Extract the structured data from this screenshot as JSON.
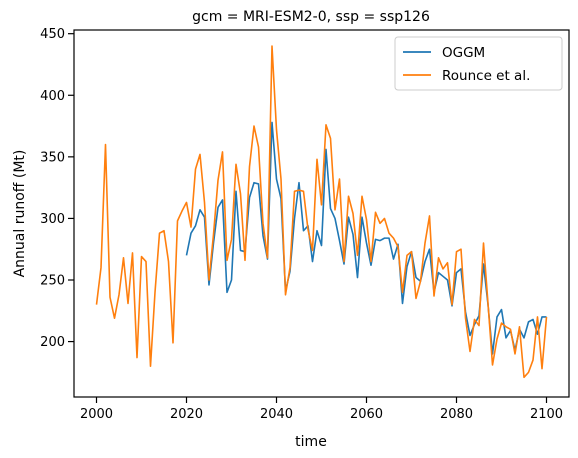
{
  "chart_data": {
    "type": "line",
    "title": "gcm = MRI-ESM2-0, ssp = ssp126",
    "xlabel": "time",
    "ylabel": "Annual runoff (Mt)",
    "xlim": [
      1995,
      2105
    ],
    "ylim": [
      155,
      453
    ],
    "xticks": [
      2000,
      2020,
      2040,
      2060,
      2080,
      2100
    ],
    "yticks": [
      200,
      250,
      300,
      350,
      400,
      450
    ],
    "grid": false,
    "legend_position": "top-right",
    "series": [
      {
        "name": "OGGM",
        "color": "#1f77b4",
        "x": [
          2020,
          2021,
          2022,
          2023,
          2024,
          2025,
          2026,
          2027,
          2028,
          2029,
          2030,
          2031,
          2032,
          2033,
          2034,
          2035,
          2036,
          2037,
          2038,
          2039,
          2040,
          2041,
          2042,
          2043,
          2044,
          2045,
          2046,
          2047,
          2048,
          2049,
          2050,
          2051,
          2052,
          2053,
          2054,
          2055,
          2056,
          2057,
          2058,
          2059,
          2060,
          2061,
          2062,
          2063,
          2064,
          2065,
          2066,
          2067,
          2068,
          2069,
          2070,
          2071,
          2072,
          2073,
          2074,
          2075,
          2076,
          2077,
          2078,
          2079,
          2080,
          2081,
          2082,
          2083,
          2084,
          2085,
          2086,
          2087,
          2088,
          2089,
          2090,
          2091,
          2092,
          2093,
          2094,
          2095,
          2096,
          2097,
          2098,
          2099,
          2100
        ],
        "values": [
          270,
          288,
          294,
          307,
          301,
          246,
          280,
          309,
          315,
          240,
          250,
          322,
          274,
          273,
          317,
          329,
          328,
          286,
          267,
          378,
          332,
          316,
          241,
          257,
          300,
          329,
          290,
          294,
          265,
          290,
          278,
          356,
          308,
          300,
          282,
          263,
          301,
          287,
          252,
          301,
          280,
          262,
          283,
          282,
          284,
          284,
          267,
          279,
          231,
          261,
          273,
          252,
          249,
          265,
          275,
          240,
          256,
          253,
          250,
          229,
          256,
          259,
          224,
          205,
          214,
          221,
          263,
          230,
          190,
          220,
          226,
          203,
          209,
          193,
          210,
          203,
          216,
          218,
          206,
          220,
          220
        ]
      },
      {
        "name": "Rounce et al.",
        "color": "#ff7f0e",
        "x": [
          2000,
          2001,
          2002,
          2003,
          2004,
          2005,
          2006,
          2007,
          2008,
          2009,
          2010,
          2011,
          2012,
          2013,
          2014,
          2015,
          2016,
          2017,
          2018,
          2019,
          2020,
          2021,
          2022,
          2023,
          2024,
          2025,
          2026,
          2027,
          2028,
          2029,
          2030,
          2031,
          2032,
          2033,
          2034,
          2035,
          2036,
          2037,
          2038,
          2039,
          2040,
          2041,
          2042,
          2043,
          2044,
          2045,
          2046,
          2047,
          2048,
          2049,
          2050,
          2051,
          2052,
          2053,
          2054,
          2055,
          2056,
          2057,
          2058,
          2059,
          2060,
          2061,
          2062,
          2063,
          2064,
          2065,
          2066,
          2067,
          2068,
          2069,
          2070,
          2071,
          2072,
          2073,
          2074,
          2075,
          2076,
          2077,
          2078,
          2079,
          2080,
          2081,
          2082,
          2083,
          2084,
          2085,
          2086,
          2087,
          2088,
          2089,
          2090,
          2091,
          2092,
          2093,
          2094,
          2095,
          2096,
          2097,
          2098,
          2099,
          2100
        ],
        "values": [
          230,
          260,
          360,
          236,
          219,
          238,
          268,
          231,
          272,
          187,
          269,
          265,
          180,
          240,
          288,
          290,
          265,
          199,
          298,
          306,
          313,
          293,
          340,
          352,
          313,
          250,
          287,
          331,
          354,
          266,
          283,
          344,
          320,
          266,
          342,
          375,
          358,
          296,
          268,
          440,
          372,
          332,
          238,
          260,
          322,
          323,
          322,
          291,
          274,
          348,
          311,
          376,
          365,
          307,
          332,
          265,
          318,
          304,
          270,
          318,
          299,
          265,
          305,
          296,
          300,
          288,
          284,
          277,
          240,
          270,
          273,
          235,
          249,
          280,
          302,
          237,
          268,
          259,
          264,
          230,
          273,
          275,
          219,
          192,
          218,
          213,
          280,
          231,
          181,
          202,
          215,
          212,
          210,
          190,
          212,
          171,
          175,
          185,
          220,
          178,
          220
        ]
      }
    ]
  }
}
